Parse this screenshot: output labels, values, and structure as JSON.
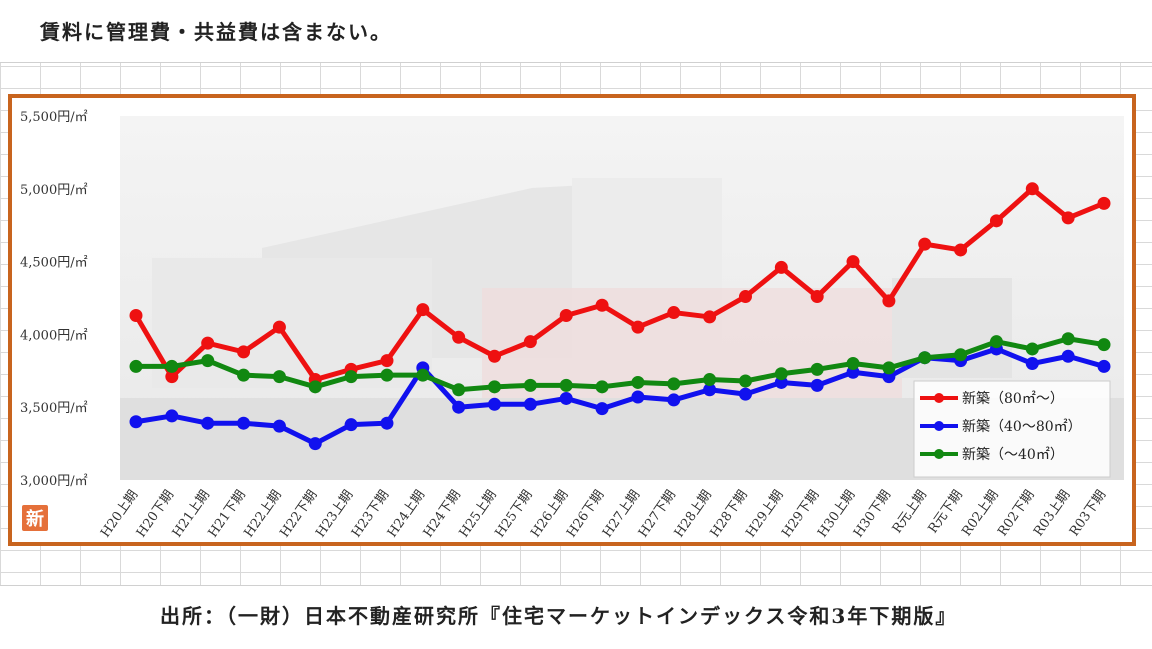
{
  "note": "賃料に管理費・共益費は含まない。",
  "source": "出所：（一財）日本不動産研究所『住宅マーケットインデックス令和3年下期版』",
  "badge": "新",
  "chart_data": {
    "type": "line",
    "title": "",
    "xlabel": "",
    "ylabel": "",
    "ylim": [
      3000,
      5500
    ],
    "yticks": [
      {
        "value": 5500,
        "label": "5,500円/㎡"
      },
      {
        "value": 5000,
        "label": "5,000円/㎡"
      },
      {
        "value": 4500,
        "label": "4,500円/㎡"
      },
      {
        "value": 4000,
        "label": "4,000円/㎡"
      },
      {
        "value": 3500,
        "label": "3,500円/㎡"
      },
      {
        "value": 3000,
        "label": "3,000円/㎡"
      }
    ],
    "grid": false,
    "legend_position": "bottom-right",
    "categories": [
      "H20上期",
      "H20下期",
      "H21上期",
      "H21下期",
      "H22上期",
      "H22下期",
      "H23上期",
      "H23下期",
      "H24上期",
      "H24下期",
      "H25上期",
      "H25下期",
      "H26上期",
      "H26下期",
      "H27上期",
      "H27下期",
      "H28上期",
      "H28下期",
      "H29上期",
      "H29下期",
      "H30上期",
      "H30下期",
      "R元上期",
      "R元下期",
      "R02上期",
      "R02下期",
      "R03上期",
      "R03下期"
    ],
    "series": [
      {
        "name": "新築（80㎡〜）",
        "color": "#ee1111",
        "values": [
          4130,
          3710,
          3940,
          3880,
          4050,
          3690,
          3760,
          3820,
          4170,
          3980,
          3850,
          3950,
          4130,
          4200,
          4050,
          4150,
          4120,
          4260,
          4460,
          4260,
          4500,
          4230,
          4620,
          4580,
          4780,
          5000,
          4800,
          4900
        ]
      },
      {
        "name": "新築（40〜80㎡）",
        "color": "#1111ee",
        "values": [
          3400,
          3440,
          3390,
          3390,
          3370,
          3250,
          3380,
          3390,
          3770,
          3500,
          3520,
          3520,
          3560,
          3490,
          3570,
          3550,
          3620,
          3590,
          3670,
          3650,
          3740,
          3710,
          3840,
          3820,
          3900,
          3800,
          3850,
          3780
        ]
      },
      {
        "name": "新築（〜40㎡）",
        "color": "#118811",
        "values": [
          3780,
          3780,
          3820,
          3720,
          3710,
          3640,
          3710,
          3720,
          3720,
          3620,
          3640,
          3650,
          3650,
          3640,
          3670,
          3660,
          3690,
          3680,
          3730,
          3760,
          3800,
          3770,
          3840,
          3860,
          3950,
          3900,
          3970,
          3930
        ]
      }
    ]
  }
}
